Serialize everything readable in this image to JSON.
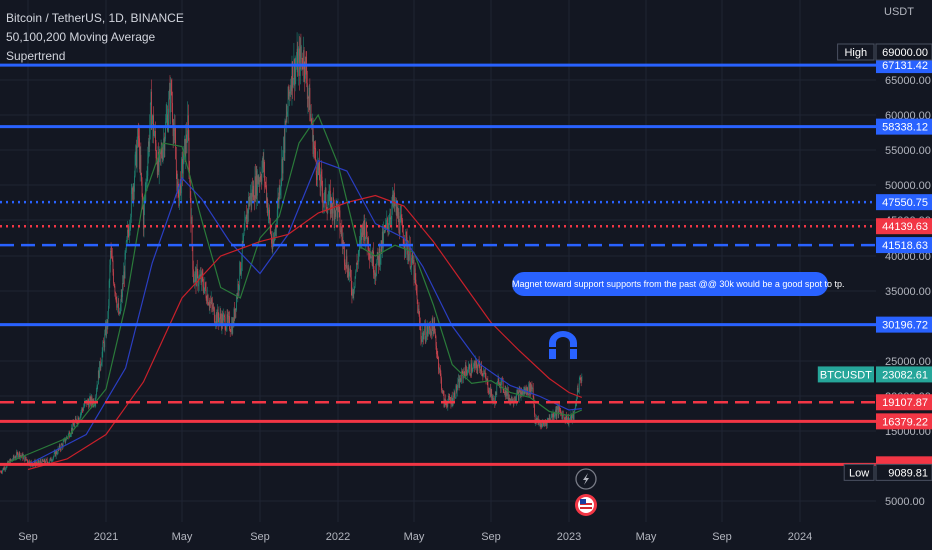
{
  "header": {
    "symbol": "Bitcoin / TetherUS, 1D, BINANCE",
    "indicator_ma": "50,100,200 Moving Average",
    "indicator_st": "Supertrend"
  },
  "currency": "USDT",
  "annotation": {
    "text": "Magnet toward support supports from the past @@ 30k would be a good spot to tp.",
    "color": "#2962ff"
  },
  "icons": {
    "magnet": "magnet-icon",
    "lightning": "lightning-icon",
    "flag": "us-flag-icon"
  },
  "colors": {
    "background": "#131722",
    "grid": "#1f2433",
    "axis_text": "#b2b5be",
    "blue_line": "#2962ff",
    "red_line": "#f23645",
    "candle_up": "#1e8070",
    "candle_down": "#c2434d",
    "ma_blue": "#2a3ec2",
    "ma_red": "#c8202a",
    "ma_green": "#2a7a3a"
  },
  "chart_data": {
    "type": "candlestick",
    "title": "Bitcoin / TetherUS, 1D, BINANCE",
    "y_axis": {
      "unit": "USDT",
      "ticks": [
        5000,
        15000,
        20000,
        25000,
        30000,
        35000,
        40000,
        45000,
        50000,
        55000,
        60000,
        65000
      ],
      "tick_labels": [
        "5000.00",
        "15000.00",
        "20000.00",
        "25000.00",
        "30000.00",
        "35000.00",
        "40000.00",
        "45000.00",
        "50000.00",
        "55000.00",
        "60000.00",
        "65000.00"
      ]
    },
    "x_axis": {
      "labels": [
        "Sep",
        "2021",
        "May",
        "Sep",
        "2022",
        "May",
        "Sep",
        "2023",
        "May",
        "Sep",
        "2024"
      ],
      "dates": [
        "2020-09-01",
        "2021-01-01",
        "2021-05-01",
        "2021-09-01",
        "2022-01-01",
        "2022-05-01",
        "2022-09-01",
        "2023-01-01",
        "2023-05-01",
        "2023-09-01",
        "2024-01-01"
      ]
    },
    "price_series": [
      [
        "2020-07-20",
        9200
      ],
      [
        "2020-08-17",
        11800
      ],
      [
        "2020-09-07",
        10300
      ],
      [
        "2020-10-05",
        10700
      ],
      [
        "2020-10-26",
        13200
      ],
      [
        "2020-11-16",
        16500
      ],
      [
        "2020-11-30",
        19000
      ],
      [
        "2020-12-14",
        19300
      ],
      [
        "2020-12-21",
        23500
      ],
      [
        "2021-01-04",
        31000
      ],
      [
        "2021-01-08",
        40500
      ],
      [
        "2021-01-22",
        31000
      ],
      [
        "2021-02-08",
        46000
      ],
      [
        "2021-02-21",
        57000
      ],
      [
        "2021-03-01",
        45000
      ],
      [
        "2021-03-13",
        61000
      ],
      [
        "2021-03-25",
        52000
      ],
      [
        "2021-04-14",
        63500
      ],
      [
        "2021-04-25",
        48000
      ],
      [
        "2021-05-10",
        58000
      ],
      [
        "2021-05-19",
        37000
      ],
      [
        "2021-06-01",
        36500
      ],
      [
        "2021-06-22",
        31500
      ],
      [
        "2021-07-20",
        30000
      ],
      [
        "2021-08-14",
        47500
      ],
      [
        "2021-09-06",
        52800
      ],
      [
        "2021-09-21",
        40500
      ],
      [
        "2021-10-20",
        66000
      ],
      [
        "2021-11-09",
        68500
      ],
      [
        "2021-11-26",
        54000
      ],
      [
        "2021-12-10",
        48000
      ],
      [
        "2021-12-31",
        46500
      ],
      [
        "2022-01-10",
        41000
      ],
      [
        "2022-01-24",
        35000
      ],
      [
        "2022-02-10",
        44500
      ],
      [
        "2022-03-01",
        38000
      ],
      [
        "2022-03-29",
        47500
      ],
      [
        "2022-04-30",
        38500
      ],
      [
        "2022-05-12",
        28500
      ],
      [
        "2022-06-01",
        30000
      ],
      [
        "2022-06-18",
        19000
      ],
      [
        "2022-07-01",
        19500
      ],
      [
        "2022-07-20",
        23500
      ],
      [
        "2022-08-15",
        24400
      ],
      [
        "2022-09-06",
        19000
      ],
      [
        "2022-09-13",
        22500
      ],
      [
        "2022-10-01",
        19500
      ],
      [
        "2022-11-05",
        21300
      ],
      [
        "2022-11-09",
        16500
      ],
      [
        "2022-11-21",
        15800
      ],
      [
        "2022-12-14",
        18000
      ],
      [
        "2022-12-31",
        16500
      ],
      [
        "2023-01-09",
        17200
      ],
      [
        "2023-01-14",
        20800
      ],
      [
        "2023-01-21",
        23082.61
      ]
    ],
    "moving_averages": [
      {
        "period": 50,
        "values": [
          [
            "2020-08-01",
            10500
          ],
          [
            "2020-11-01",
            14000
          ],
          [
            "2021-01-01",
            21000
          ],
          [
            "2021-02-01",
            33000
          ],
          [
            "2021-03-01",
            48000
          ],
          [
            "2021-04-01",
            56000
          ],
          [
            "2021-05-01",
            55500
          ],
          [
            "2021-06-01",
            45000
          ],
          [
            "2021-07-01",
            35500
          ],
          [
            "2021-08-01",
            34000
          ],
          [
            "2021-09-01",
            42500
          ],
          [
            "2021-10-01",
            45500
          ],
          [
            "2021-11-01",
            56000
          ],
          [
            "2021-12-01",
            60000
          ],
          [
            "2022-01-01",
            53000
          ],
          [
            "2022-02-01",
            41500
          ],
          [
            "2022-03-01",
            40000
          ],
          [
            "2022-04-01",
            41500
          ],
          [
            "2022-05-01",
            40500
          ],
          [
            "2022-06-01",
            33000
          ],
          [
            "2022-07-01",
            24500
          ],
          [
            "2022-08-01",
            21800
          ],
          [
            "2022-09-01",
            22200
          ],
          [
            "2022-10-01",
            20500
          ],
          [
            "2022-11-01",
            19800
          ],
          [
            "2022-12-01",
            17800
          ],
          [
            "2023-01-01",
            17200
          ],
          [
            "2023-01-21",
            18000
          ]
        ]
      },
      {
        "period": 100,
        "values": [
          [
            "2020-09-01",
            10200
          ],
          [
            "2020-12-01",
            14500
          ],
          [
            "2021-02-01",
            24000
          ],
          [
            "2021-03-15",
            39000
          ],
          [
            "2021-05-01",
            51000
          ],
          [
            "2021-06-01",
            48000
          ],
          [
            "2021-07-15",
            42000
          ],
          [
            "2021-09-01",
            37500
          ],
          [
            "2021-10-15",
            43000
          ],
          [
            "2021-12-01",
            53500
          ],
          [
            "2022-01-15",
            52000
          ],
          [
            "2022-03-01",
            44500
          ],
          [
            "2022-04-15",
            42500
          ],
          [
            "2022-05-15",
            38500
          ],
          [
            "2022-07-01",
            30000
          ],
          [
            "2022-08-15",
            24500
          ],
          [
            "2022-10-01",
            21500
          ],
          [
            "2022-11-15",
            20000
          ],
          [
            "2023-01-01",
            18000
          ],
          [
            "2023-01-21",
            18200
          ]
        ]
      },
      {
        "period": 200,
        "values": [
          [
            "2020-09-01",
            9500
          ],
          [
            "2020-11-01",
            11000
          ],
          [
            "2021-01-01",
            14500
          ],
          [
            "2021-03-01",
            22000
          ],
          [
            "2021-05-01",
            34000
          ],
          [
            "2021-07-01",
            40000
          ],
          [
            "2021-09-01",
            42000
          ],
          [
            "2021-10-15",
            43000
          ],
          [
            "2021-12-01",
            46000
          ],
          [
            "2022-01-15",
            47500
          ],
          [
            "2022-03-01",
            48500
          ],
          [
            "2022-04-15",
            47000
          ],
          [
            "2022-06-01",
            42000
          ],
          [
            "2022-07-15",
            36500
          ],
          [
            "2022-09-01",
            30500
          ],
          [
            "2022-10-15",
            26500
          ],
          [
            "2022-12-01",
            22500
          ],
          [
            "2023-01-01",
            20500
          ],
          [
            "2023-01-21",
            19800
          ]
        ]
      }
    ],
    "horizontal_lines": [
      {
        "value": 67131.42,
        "label": "67131.42",
        "color": "#2962ff",
        "style": "solid"
      },
      {
        "value": 58338.12,
        "label": "58338.12",
        "color": "#2962ff",
        "style": "solid"
      },
      {
        "value": 47550.75,
        "label": "47550.75",
        "color": "#2962ff",
        "style": "dotted"
      },
      {
        "value": 44139.63,
        "label": "44139.63",
        "color": "#f23645",
        "style": "dotted"
      },
      {
        "value": 41518.63,
        "label": "41518.63",
        "color": "#2962ff",
        "style": "dashed"
      },
      {
        "value": 30196.72,
        "label": "30196.72",
        "color": "#2962ff",
        "style": "solid"
      },
      {
        "value": 19107.87,
        "label": "19107.87",
        "color": "#f23645",
        "style": "dashed"
      },
      {
        "value": 16379.22,
        "label": "16379.22",
        "color": "#f23645",
        "style": "solid"
      },
      {
        "value": 10240,
        "label": "",
        "color": "#f23645",
        "style": "solid"
      }
    ],
    "price_tags": [
      {
        "value": 69000,
        "tag": "High",
        "label": "69000.00",
        "color": "#131722"
      },
      {
        "value": 23082.61,
        "tag": "BTCUSDT",
        "label": "23082.61",
        "color": "#26a69a"
      },
      {
        "value": 9089.81,
        "tag": "Low",
        "label": "9089.81",
        "color": "#131722"
      }
    ],
    "current_price": 23082.61
  }
}
